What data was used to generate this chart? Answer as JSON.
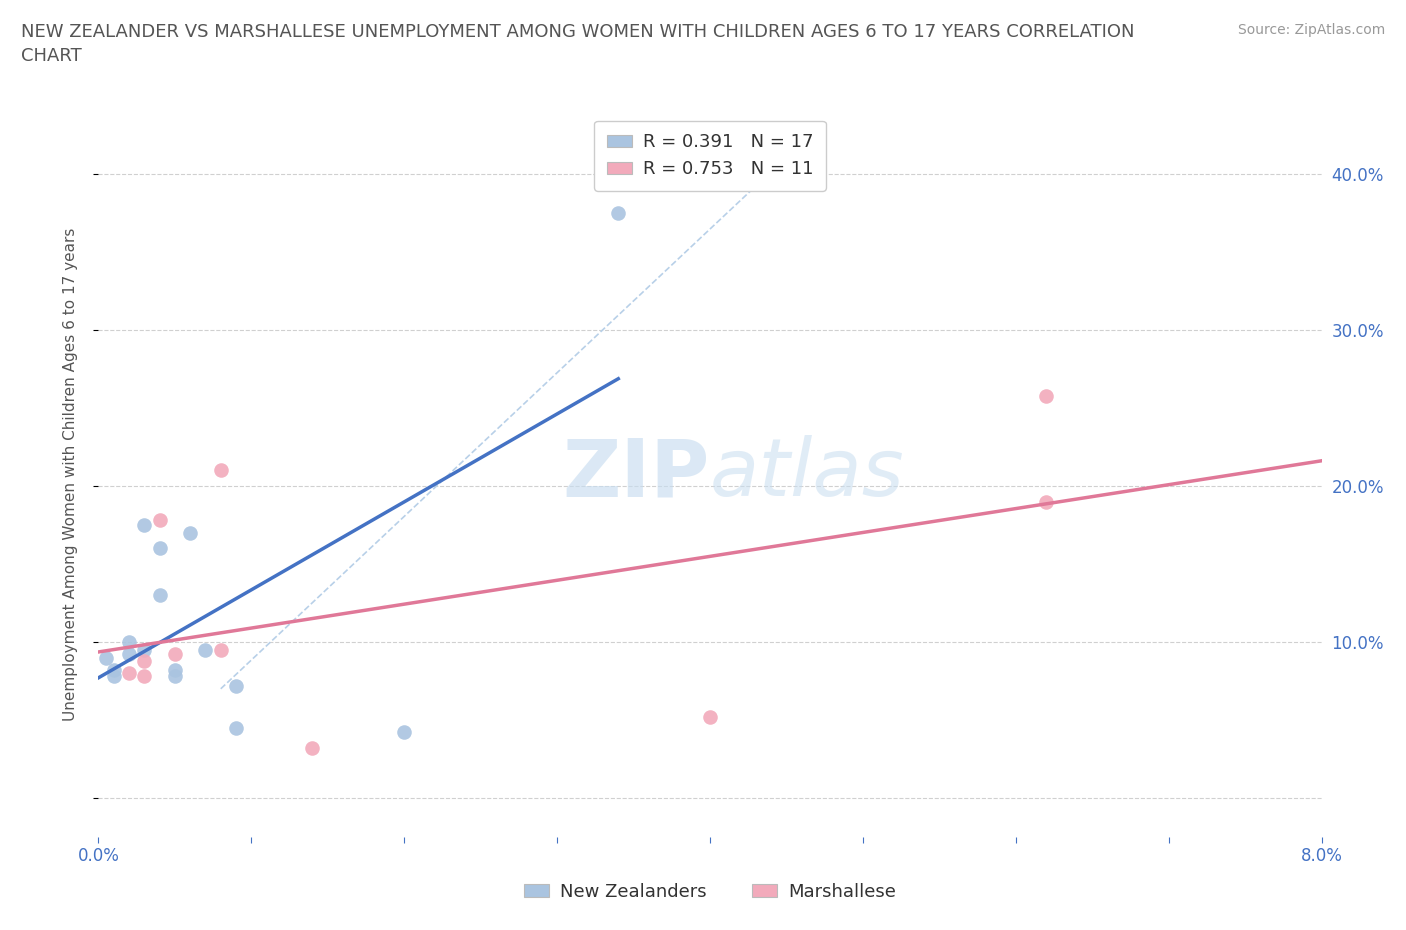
{
  "title": "NEW ZEALANDER VS MARSHALLESE UNEMPLOYMENT AMONG WOMEN WITH CHILDREN AGES 6 TO 17 YEARS CORRELATION\nCHART",
  "source_text": "Source: ZipAtlas.com",
  "ylabel": "Unemployment Among Women with Children Ages 6 to 17 years",
  "xlim": [
    0.0,
    0.08
  ],
  "ylim": [
    -0.025,
    0.44
  ],
  "ytick_vals": [
    0.0,
    0.1,
    0.2,
    0.3,
    0.4
  ],
  "ytick_labels_right": [
    "",
    "10.0%",
    "20.0%",
    "30.0%",
    "40.0%"
  ],
  "xtick_vals": [
    0.0,
    0.01,
    0.02,
    0.03,
    0.04,
    0.05,
    0.06,
    0.07,
    0.08
  ],
  "xtick_labels": [
    "0.0%",
    "",
    "",
    "",
    "",
    "",
    "",
    "",
    "8.0%"
  ],
  "nz_color": "#aac4e0",
  "marsh_color": "#f2aabb",
  "nz_line_color": "#4472c4",
  "marsh_line_color": "#e07898",
  "diagonal_color": "#b8d0e8",
  "watermark_color": "#ddeeff",
  "R_nz": 0.391,
  "N_nz": 17,
  "R_marsh": 0.753,
  "N_marsh": 11,
  "nz_x": [
    0.0005,
    0.001,
    0.001,
    0.002,
    0.002,
    0.003,
    0.003,
    0.004,
    0.004,
    0.005,
    0.005,
    0.006,
    0.007,
    0.009,
    0.009,
    0.02,
    0.034
  ],
  "nz_y": [
    0.09,
    0.082,
    0.078,
    0.1,
    0.092,
    0.095,
    0.175,
    0.16,
    0.13,
    0.082,
    0.078,
    0.17,
    0.095,
    0.072,
    0.045,
    0.042,
    0.375
  ],
  "marsh_x": [
    0.002,
    0.003,
    0.003,
    0.004,
    0.005,
    0.008,
    0.008,
    0.014,
    0.04,
    0.062,
    0.062
  ],
  "marsh_y": [
    0.08,
    0.088,
    0.078,
    0.178,
    0.092,
    0.095,
    0.21,
    0.032,
    0.052,
    0.19,
    0.258
  ],
  "legend_label_nz": "New Zealanders",
  "legend_label_marsh": "Marshallese",
  "background_color": "#ffffff",
  "grid_color": "#d0d0d0",
  "title_color": "#555555",
  "axis_label_color": "#555555",
  "tick_color": "#4472c4"
}
